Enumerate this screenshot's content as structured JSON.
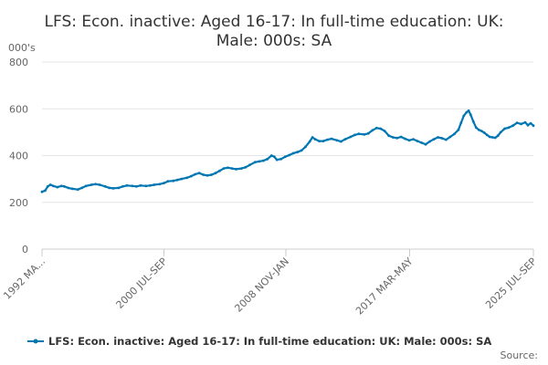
{
  "chart_data": {
    "type": "line",
    "title_lines": [
      "LFS: Econ. inactive: Aged 16-17: In full-time education: UK:",
      "Male: 000s: SA"
    ],
    "ylabel": "000's",
    "ylim": [
      0,
      800
    ],
    "yticks": [
      0,
      200,
      400,
      600,
      800
    ],
    "grid": true,
    "x_start": 1992.375,
    "x_end": 2025.625,
    "xtick_labels": [
      {
        "label": "1992 MA...",
        "t": 1992.375
      },
      {
        "label": "2000 JUL-SEP",
        "t": 2000.625
      },
      {
        "label": "2008 NOV-JAN",
        "t": 2008.875
      },
      {
        "label": "2017 MAR-MAY",
        "t": 2017.25
      },
      {
        "label": "2025 JUL-SEP",
        "t": 2025.625
      }
    ],
    "color": "#0077b3",
    "series": [
      {
        "name": "LFS: Econ. inactive: Aged 16-17: In full-time education: UK: Male: 000s: SA",
        "points": [
          [
            1992.375,
            245
          ],
          [
            1992.6,
            250
          ],
          [
            1992.8,
            268
          ],
          [
            1993.0,
            275
          ],
          [
            1993.2,
            270
          ],
          [
            1993.5,
            265
          ],
          [
            1993.8,
            270
          ],
          [
            1994.0,
            268
          ],
          [
            1994.3,
            262
          ],
          [
            1994.6,
            258
          ],
          [
            1995.0,
            255
          ],
          [
            1995.3,
            262
          ],
          [
            1995.6,
            270
          ],
          [
            1996.0,
            275
          ],
          [
            1996.3,
            278
          ],
          [
            1996.6,
            275
          ],
          [
            1997.0,
            268
          ],
          [
            1997.3,
            262
          ],
          [
            1997.6,
            260
          ],
          [
            1998.0,
            262
          ],
          [
            1998.3,
            268
          ],
          [
            1998.6,
            272
          ],
          [
            1999.0,
            270
          ],
          [
            1999.3,
            268
          ],
          [
            1999.6,
            272
          ],
          [
            2000.0,
            270
          ],
          [
            2000.3,
            272
          ],
          [
            2000.6,
            275
          ],
          [
            2001.0,
            278
          ],
          [
            2001.3,
            282
          ],
          [
            2001.6,
            290
          ],
          [
            2002.0,
            292
          ],
          [
            2002.3,
            296
          ],
          [
            2002.6,
            300
          ],
          [
            2003.0,
            305
          ],
          [
            2003.3,
            312
          ],
          [
            2003.6,
            320
          ],
          [
            2003.9,
            325
          ],
          [
            2004.2,
            318
          ],
          [
            2004.5,
            315
          ],
          [
            2004.8,
            318
          ],
          [
            2005.1,
            325
          ],
          [
            2005.4,
            335
          ],
          [
            2005.7,
            345
          ],
          [
            2006.0,
            348
          ],
          [
            2006.3,
            345
          ],
          [
            2006.6,
            342
          ],
          [
            2007.0,
            345
          ],
          [
            2007.3,
            350
          ],
          [
            2007.6,
            360
          ],
          [
            2008.0,
            372
          ],
          [
            2008.3,
            375
          ],
          [
            2008.6,
            378
          ],
          [
            2008.9,
            385
          ],
          [
            2009.2,
            400
          ],
          [
            2009.4,
            395
          ],
          [
            2009.6,
            382
          ],
          [
            2009.9,
            385
          ],
          [
            2010.2,
            395
          ],
          [
            2010.5,
            402
          ],
          [
            2010.8,
            410
          ],
          [
            2011.1,
            415
          ],
          [
            2011.4,
            422
          ],
          [
            2011.7,
            438
          ],
          [
            2012.0,
            460
          ],
          [
            2012.2,
            478
          ],
          [
            2012.4,
            470
          ],
          [
            2012.7,
            462
          ],
          [
            2013.0,
            462
          ],
          [
            2013.3,
            468
          ],
          [
            2013.6,
            472
          ],
          [
            2014.0,
            465
          ],
          [
            2014.3,
            460
          ],
          [
            2014.6,
            470
          ],
          [
            2015.0,
            480
          ],
          [
            2015.3,
            488
          ],
          [
            2015.6,
            493
          ],
          [
            2016.0,
            490
          ],
          [
            2016.3,
            495
          ],
          [
            2016.6,
            508
          ],
          [
            2016.9,
            518
          ],
          [
            2017.2,
            515
          ],
          [
            2017.5,
            505
          ],
          [
            2017.8,
            485
          ],
          [
            2018.1,
            478
          ],
          [
            2018.4,
            475
          ],
          [
            2018.7,
            480
          ],
          [
            2019.0,
            472
          ],
          [
            2019.3,
            465
          ],
          [
            2019.6,
            470
          ],
          [
            2019.9,
            462
          ],
          [
            2020.2,
            455
          ],
          [
            2020.5,
            448
          ],
          [
            2020.8,
            460
          ],
          [
            2021.1,
            470
          ],
          [
            2021.4,
            478
          ],
          [
            2021.7,
            474
          ],
          [
            2022.0,
            468
          ],
          [
            2022.3,
            480
          ],
          [
            2022.6,
            492
          ],
          [
            2022.9,
            510
          ],
          [
            2023.1,
            540
          ],
          [
            2023.3,
            570
          ],
          [
            2023.5,
            585
          ],
          [
            2023.65,
            592
          ],
          [
            2023.8,
            575
          ],
          [
            2024.0,
            545
          ],
          [
            2024.2,
            520
          ],
          [
            2024.4,
            510
          ],
          [
            2024.6,
            505
          ],
          [
            2024.8,
            498
          ],
          [
            2025.0,
            488
          ],
          [
            2025.2,
            480
          ],
          [
            2025.4,
            478
          ],
          [
            2025.6,
            476
          ],
          [
            2025.8,
            485
          ],
          [
            2026.0,
            500
          ],
          [
            2026.3,
            515
          ],
          [
            2026.6,
            520
          ],
          [
            2026.9,
            528
          ],
          [
            2027.2,
            540
          ],
          [
            2027.5,
            535
          ],
          [
            2027.8,
            542
          ],
          [
            2028.0,
            530
          ],
          [
            2028.2,
            538
          ],
          [
            2028.4,
            528
          ]
        ]
      }
    ],
    "source_label": "Source:"
  }
}
